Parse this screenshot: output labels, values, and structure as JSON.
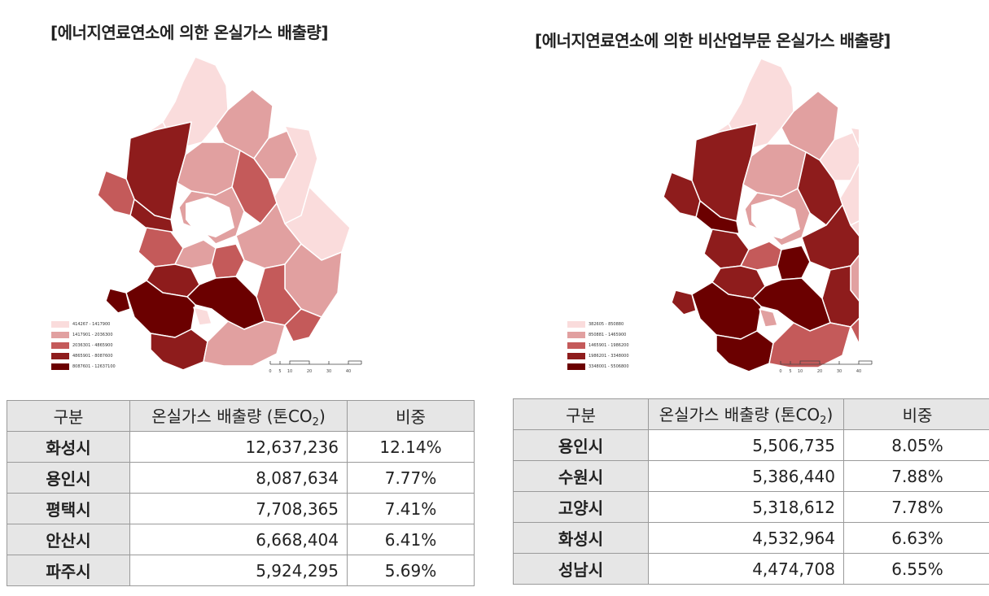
{
  "left": {
    "title": "[에너지연료연소에 의한 온실가스 배출량]",
    "legend": [
      {
        "label": "414267 - 1417900",
        "color": "#fadcdc"
      },
      {
        "label": "1417901 - 2036300",
        "color": "#e1a0a0"
      },
      {
        "label": "2036301 - 4865900",
        "color": "#c45a5a"
      },
      {
        "label": "4865901 - 8087600",
        "color": "#8e1c1c"
      },
      {
        "label": "8087601 - 12637100",
        "color": "#6b0000"
      }
    ],
    "scale_labels": [
      "0",
      "5",
      "10",
      "20",
      "30",
      "40"
    ],
    "table": {
      "headers": [
        "구분",
        "온실가스 배출량 (톤CO",
        "2",
        ")",
        "비중"
      ],
      "rows": [
        {
          "region": "화성시",
          "value": "12,637,236",
          "share": "12.14%"
        },
        {
          "region": "용인시",
          "value": "8,087,634",
          "share": "7.77%"
        },
        {
          "region": "평택시",
          "value": "7,708,365",
          "share": "7.41%"
        },
        {
          "region": "안산시",
          "value": "6,668,404",
          "share": "6.41%"
        },
        {
          "region": "파주시",
          "value": "5,924,295",
          "share": "5.69%"
        }
      ]
    }
  },
  "right": {
    "title": "[에너지연료연소에 의한 비산업부문 온실가스 배출량]",
    "legend": [
      {
        "label": "382605 - 850880",
        "color": "#fadcdc"
      },
      {
        "label": "850881 - 1465900",
        "color": "#e1a0a0"
      },
      {
        "label": "1465901 - 1986200",
        "color": "#c45a5a"
      },
      {
        "label": "1986201 - 3348000",
        "color": "#8e1c1c"
      },
      {
        "label": "3348001 - 5506800",
        "color": "#6b0000"
      }
    ],
    "scale_labels": [
      "0",
      "5",
      "10",
      "20",
      "30",
      "40"
    ],
    "table": {
      "headers": [
        "구분",
        "온실가스 배출량 (톤CO",
        "2",
        ")",
        "비중"
      ],
      "rows": [
        {
          "region": "용인시",
          "value": "5,506,735",
          "share": "8.05%"
        },
        {
          "region": "수원시",
          "value": "5,386,440",
          "share": "7.88%"
        },
        {
          "region": "고양시",
          "value": "5,318,612",
          "share": "7.78%"
        },
        {
          "region": "화성시",
          "value": "4,532,964",
          "share": "6.63%"
        },
        {
          "region": "성남시",
          "value": "4,474,708",
          "share": "6.55%"
        }
      ]
    }
  }
}
